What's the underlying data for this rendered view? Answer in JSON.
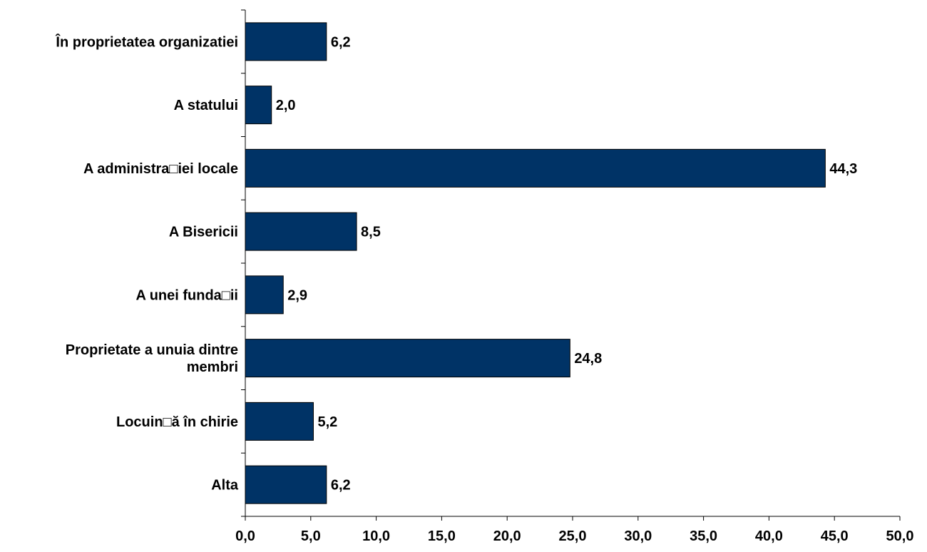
{
  "chart_data": {
    "type": "bar",
    "orientation": "horizontal",
    "categories": [
      "În proprietatea organizatiei",
      "A statului",
      "A administra□iei locale",
      "A Bisericii",
      "A unei funda□ii",
      "Proprietate a unuia dintre membri",
      "Locuin□ă în chirie",
      "Alta"
    ],
    "category_lines": [
      [
        "În proprietatea organizatiei"
      ],
      [
        "A statului"
      ],
      [
        "A administra□iei locale"
      ],
      [
        "A Bisericii"
      ],
      [
        "A unei funda□ii"
      ],
      [
        "Proprietate a unuia dintre",
        "membri"
      ],
      [
        "Locuin□ă în chirie"
      ],
      [
        "Alta"
      ]
    ],
    "values": [
      6.2,
      2.0,
      44.3,
      8.5,
      2.9,
      24.8,
      5.2,
      6.2
    ],
    "value_labels": [
      "6,2",
      "2,0",
      "44,3",
      "8,5",
      "2,9",
      "24,8",
      "5,2",
      "6,2"
    ],
    "xlim": [
      0,
      50
    ],
    "ticks": [
      0,
      5,
      10,
      15,
      20,
      25,
      30,
      35,
      40,
      45,
      50
    ],
    "tick_labels": [
      "0,0",
      "5,0",
      "10,0",
      "15,0",
      "20,0",
      "25,0",
      "30,0",
      "35,0",
      "40,0",
      "45,0",
      "50,0"
    ],
    "title": "",
    "xlabel": "",
    "ylabel": "",
    "grid": false,
    "legend": "none",
    "colors": {
      "bar_fill": "#003366",
      "bar_stroke": "#000000",
      "axis": "#000000",
      "text": "#000000"
    }
  }
}
